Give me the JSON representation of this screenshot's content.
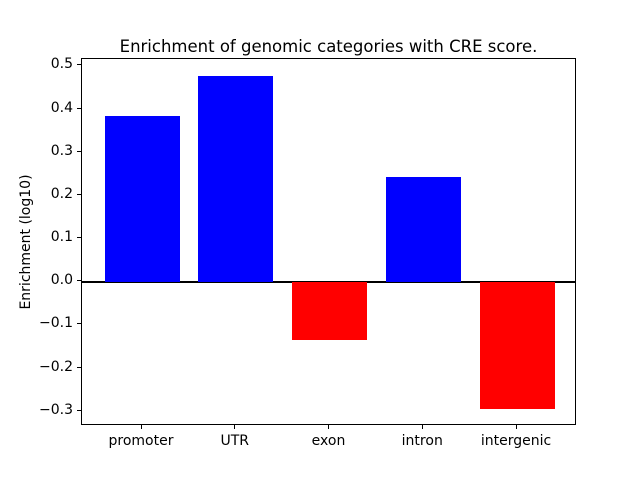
{
  "chart_data": {
    "type": "bar",
    "title": "Enrichment of genomic categories with CRE score.",
    "xlabel": "",
    "ylabel": "Enrichment (log10)",
    "categories": [
      "promoter",
      "UTR",
      "exon",
      "intron",
      "intergenic"
    ],
    "values": [
      0.385,
      0.477,
      -0.134,
      0.242,
      -0.295
    ],
    "bar_colors": [
      "#0000ff",
      "#0000ff",
      "#ff0000",
      "#0000ff",
      "#ff0000"
    ],
    "positive_color": "#0000ff",
    "negative_color": "#ff0000",
    "ylim": [
      -0.334,
      0.516
    ],
    "yticks": [
      {
        "value": 0.5,
        "label": "0.5"
      },
      {
        "value": 0.4,
        "label": "0.4"
      },
      {
        "value": 0.3,
        "label": "0.3"
      },
      {
        "value": 0.2,
        "label": "0.2"
      },
      {
        "value": 0.1,
        "label": "0.1"
      },
      {
        "value": 0.0,
        "label": "0.0"
      },
      {
        "value": -0.1,
        "label": "−0.1"
      },
      {
        "value": -0.2,
        "label": "−0.2"
      },
      {
        "value": -0.3,
        "label": "−0.3"
      }
    ],
    "grid": false,
    "legend": null,
    "zero_line": true
  }
}
